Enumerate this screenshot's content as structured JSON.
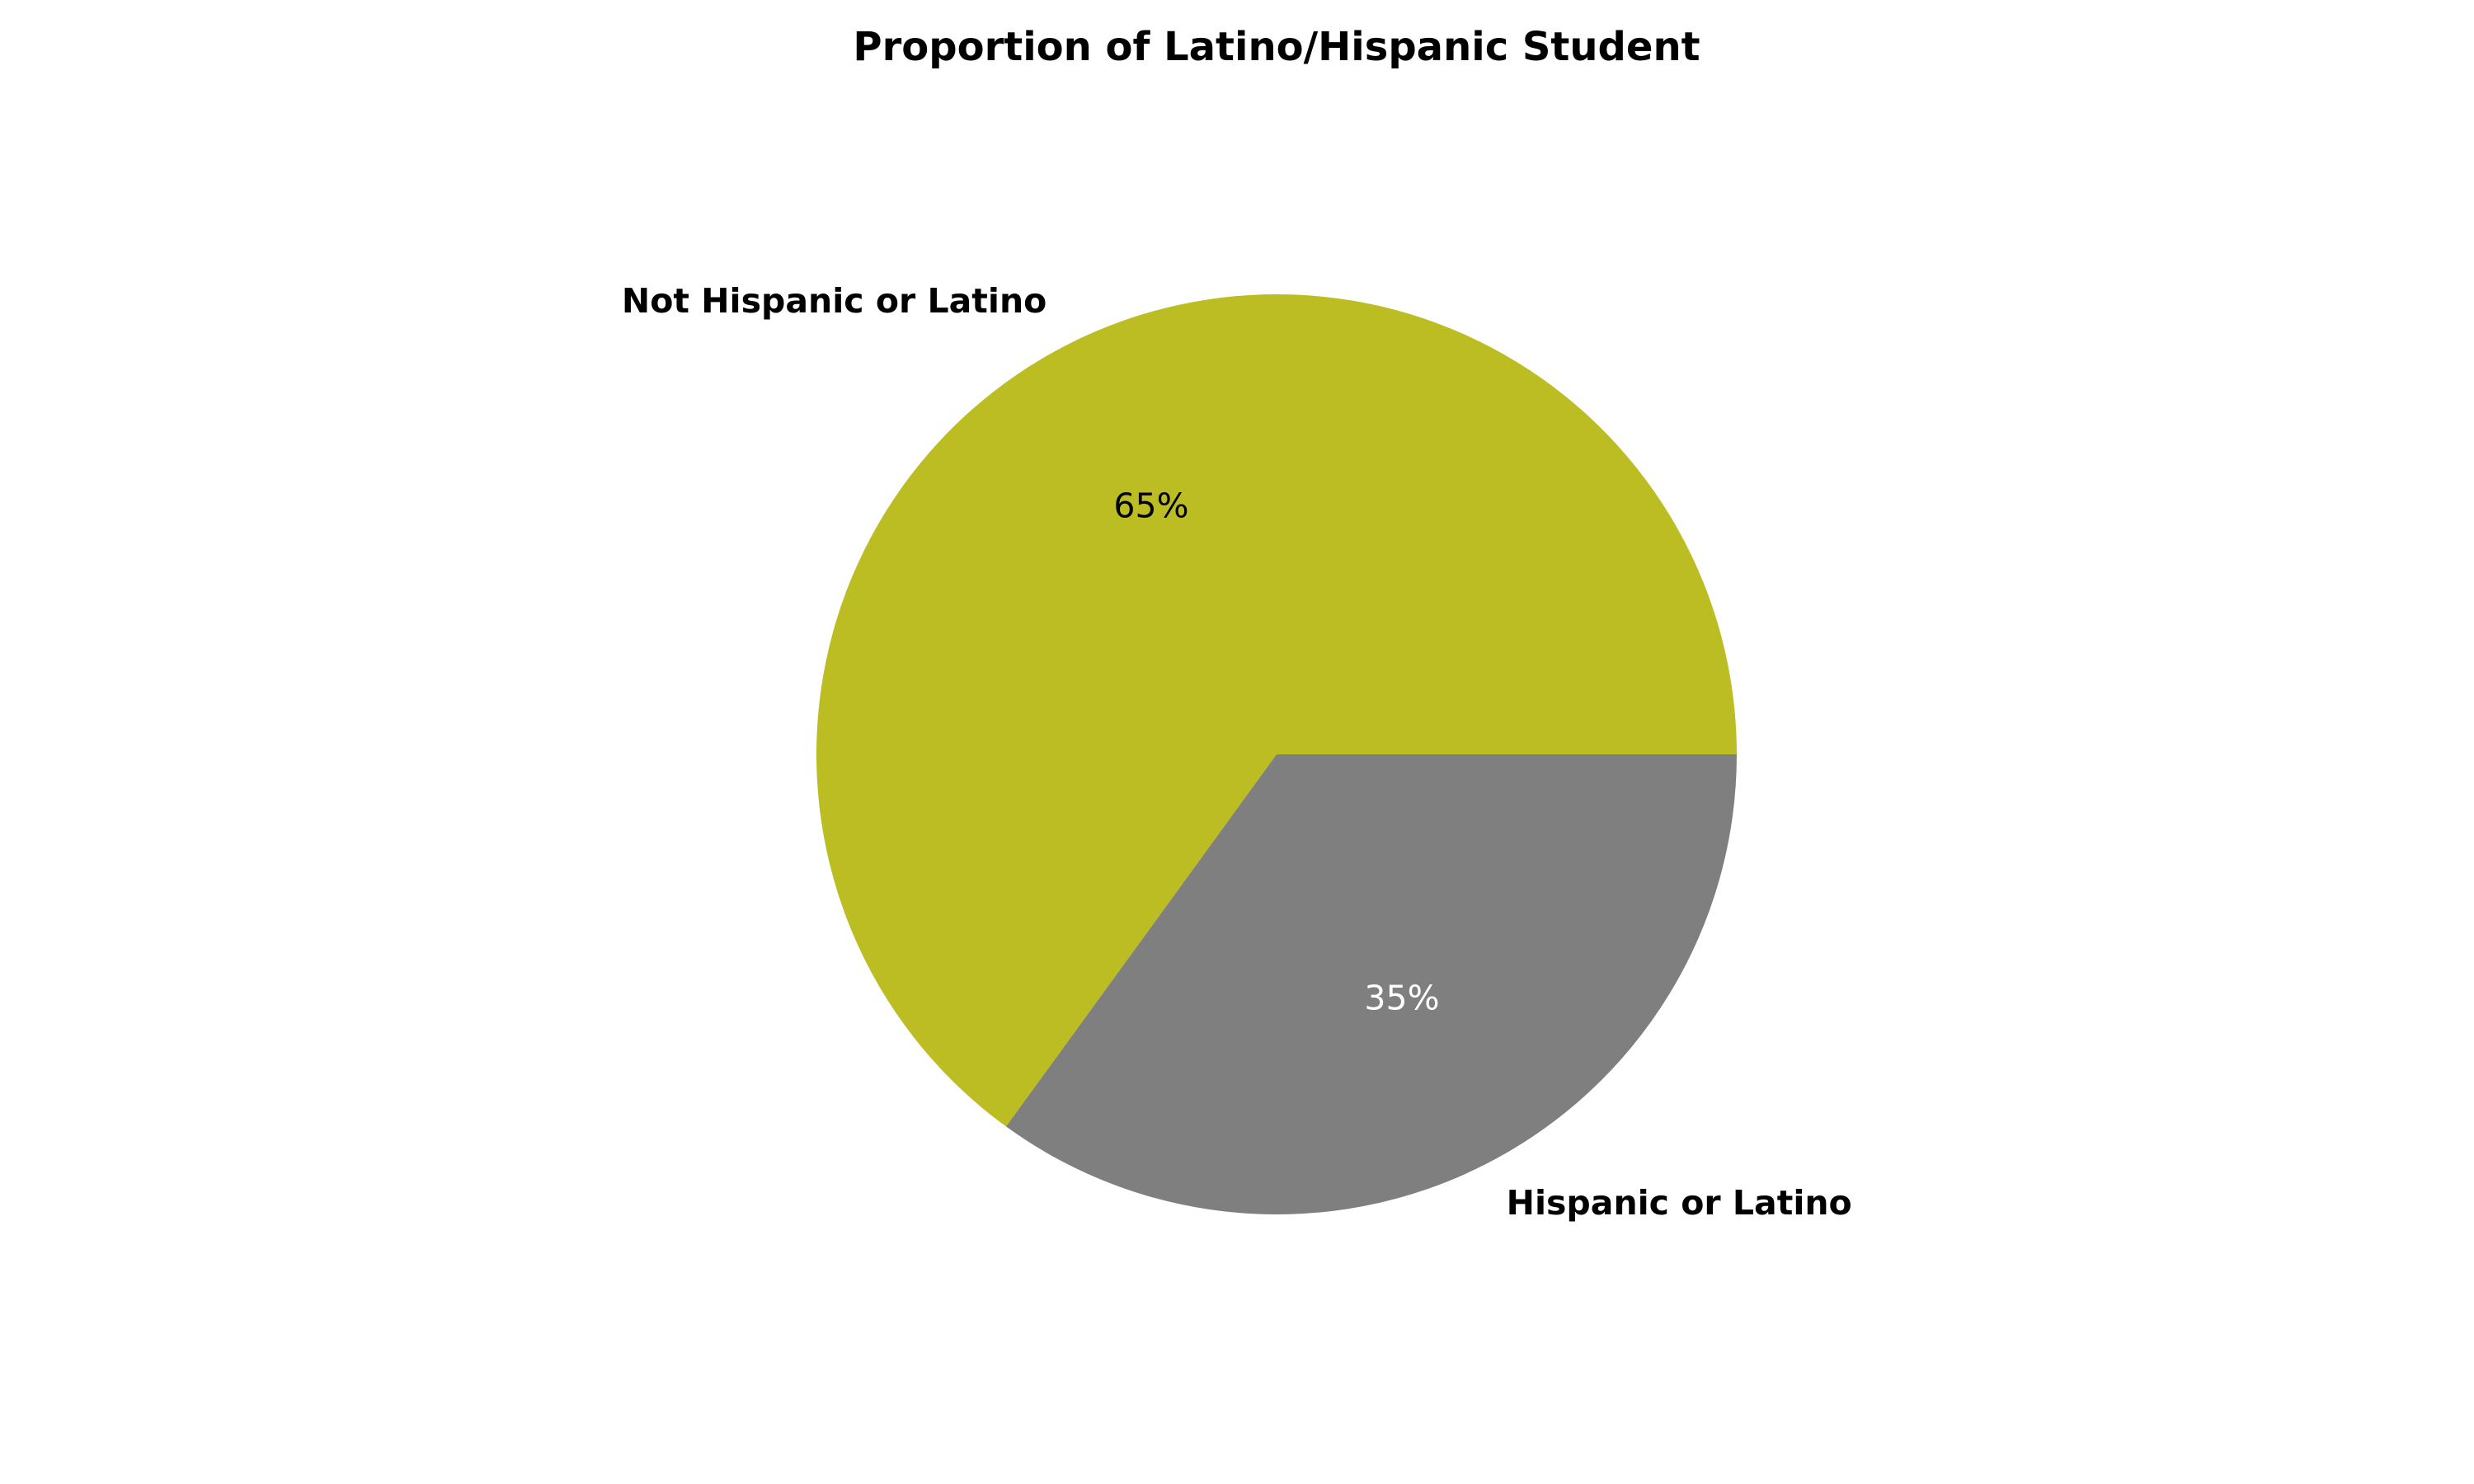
{
  "chart_data": {
    "type": "pie",
    "title": "Proportion of Latino/Hispanic Student",
    "start_angle_deg": 0,
    "direction": "counterclockwise",
    "slices": [
      {
        "label": "Not Hispanic or Latino",
        "value": 65,
        "pct_label": "65%",
        "color": "#bcbd22",
        "pct_text_color": "#000000",
        "label_text_color": "#000000"
      },
      {
        "label": "Hispanic or Latino",
        "value": 35,
        "pct_label": "35%",
        "color": "#7f7f7f",
        "pct_text_color": "#ffffff",
        "label_text_color": "#000000"
      }
    ],
    "legend": "none"
  }
}
